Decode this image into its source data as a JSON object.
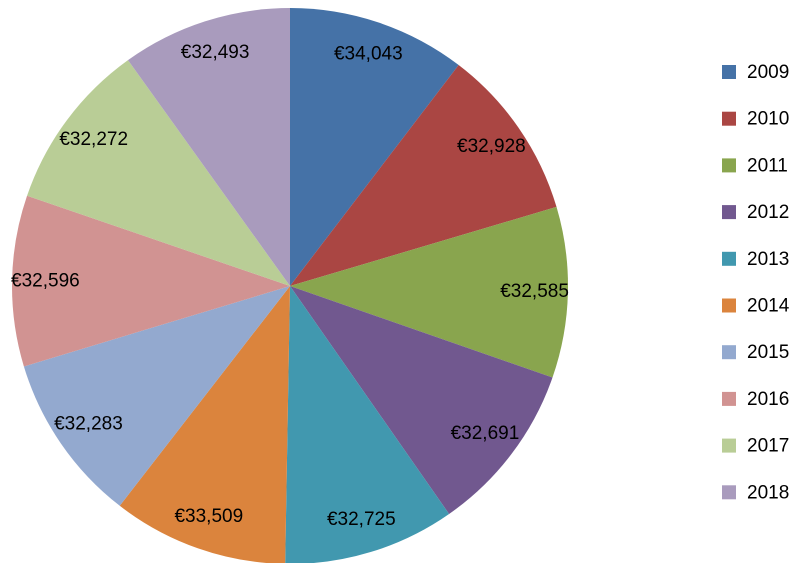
{
  "chart_data": {
    "type": "pie",
    "categories": [
      "2009",
      "2010",
      "2011",
      "2012",
      "2013",
      "2014",
      "2015",
      "2016",
      "2017",
      "2018"
    ],
    "values": [
      34043,
      32928,
      32585,
      32691,
      32725,
      33509,
      32283,
      32596,
      32272,
      32493
    ],
    "value_labels": [
      "€34,043",
      "€32,928",
      "€32,585",
      "€32,691",
      "€32,725",
      "€33,509",
      "€32,283",
      "€32,596",
      "€32,272",
      "€32,493"
    ],
    "colors": [
      "#4572a7",
      "#aa4643",
      "#89a54e",
      "#71588f",
      "#4198af",
      "#db843d",
      "#93a9cf",
      "#d19392",
      "#b9cd96",
      "#a99bbd"
    ],
    "legend": "right"
  }
}
